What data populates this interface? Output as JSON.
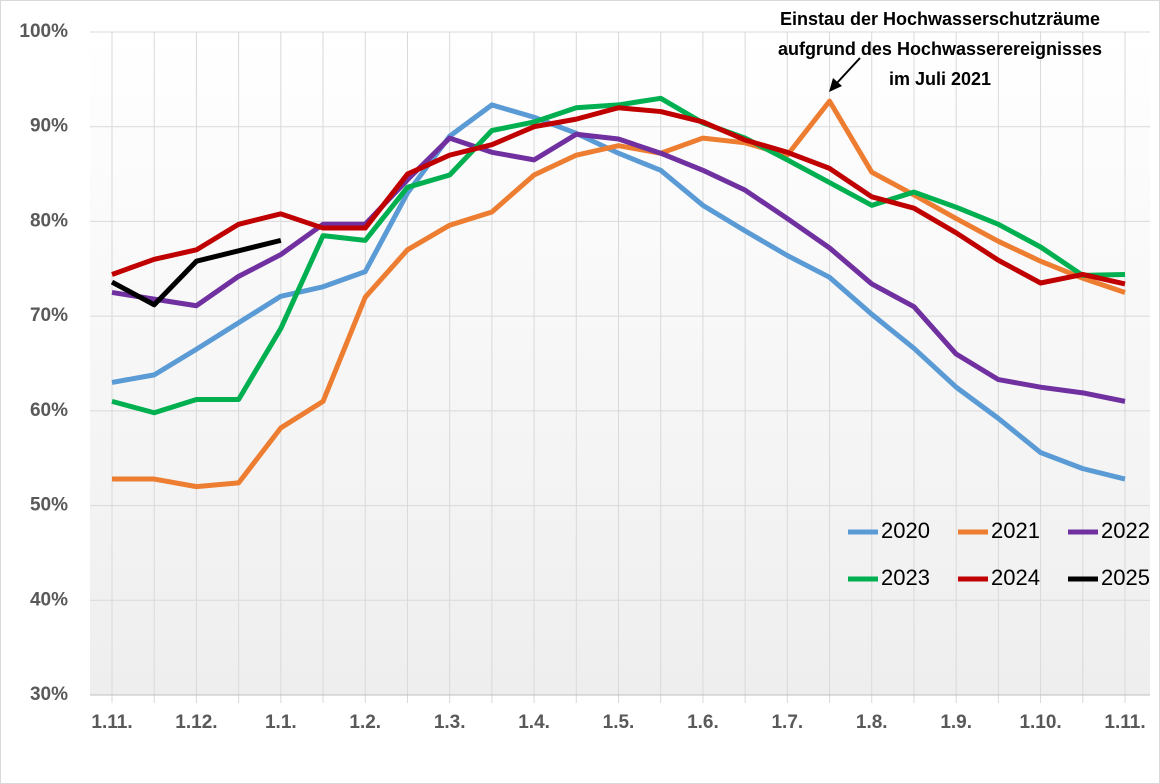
{
  "chart_data": {
    "type": "line",
    "annotation": [
      "Einstau der Hochwasserschutzräume",
      "aufgrund des Hochwasserereignisses",
      "im Juli 2021"
    ],
    "categories": [
      "1.11.",
      null,
      "1.12.",
      null,
      "1.1.",
      null,
      "1.2.",
      null,
      "1.3.",
      null,
      "1.4.",
      null,
      "1.5.",
      null,
      "1.6.",
      null,
      "1.7.",
      null,
      "1.8.",
      null,
      "1.9.",
      null,
      "1.10.",
      null,
      "1.11."
    ],
    "series": [
      {
        "name": "2020",
        "color": "#5b9bd5",
        "values": [
          63,
          63.8,
          66.5,
          69.3,
          72.1,
          73.1,
          74.7,
          83,
          89,
          92.3,
          91,
          89.3,
          87.2,
          85.4,
          81.7,
          79,
          76.4,
          74.1,
          70.2,
          66.6,
          62.5,
          59.2,
          55.6,
          53.9,
          52.8
        ]
      },
      {
        "name": "2021",
        "color": "#ed7d31",
        "values": [
          52.8,
          52.8,
          52.0,
          52.4,
          58.2,
          61,
          72,
          77,
          79.6,
          81,
          84.9,
          87,
          88,
          87.2,
          88.8,
          88.3,
          87,
          92.7,
          85.2,
          82.8,
          80.3,
          77.9,
          75.8,
          74,
          72.5
        ]
      },
      {
        "name": "2022",
        "color": "#7030a0",
        "values": [
          72.5,
          71.8,
          71.1,
          74.2,
          76.5,
          79.7,
          79.7,
          84.4,
          88.8,
          87.3,
          86.5,
          89.2,
          88.7,
          87.2,
          85.4,
          83.3,
          80.3,
          77.2,
          73.4,
          71,
          66,
          63.3,
          62.5,
          61.9,
          61
        ]
      },
      {
        "name": "2023",
        "color": "#00b050",
        "values": [
          61,
          59.8,
          61.2,
          61.2,
          68.7,
          78.5,
          78,
          83.6,
          84.9,
          89.6,
          90.5,
          92,
          92.3,
          93,
          90.4,
          88.8,
          86.5,
          84.1,
          81.7,
          83.1,
          81.5,
          79.7,
          77.3,
          74.3,
          74.4
        ]
      },
      {
        "name": "2024",
        "color": "#c00000",
        "values": [
          74.4,
          76,
          77,
          79.7,
          80.8,
          79.3,
          79.3,
          85,
          87,
          88.1,
          90,
          90.8,
          92,
          91.6,
          90.5,
          88.6,
          87.3,
          85.6,
          82.6,
          81.4,
          78.8,
          75.9,
          73.5,
          74.4,
          73.4
        ]
      },
      {
        "name": "2025",
        "color": "#000000",
        "values": [
          73.6,
          71.2,
          75.8,
          76.9,
          78,
          null,
          null,
          null,
          null,
          null,
          null,
          null,
          null,
          null,
          null,
          null,
          null,
          null,
          null,
          null,
          null,
          null,
          null,
          null,
          null
        ]
      }
    ],
    "ylim": [
      30,
      100
    ],
    "yticks": [
      {
        "value": 30,
        "label": "30%"
      },
      {
        "value": 40,
        "label": "40%"
      },
      {
        "value": 50,
        "label": "50%"
      },
      {
        "value": 60,
        "label": "60%"
      },
      {
        "value": 70,
        "label": "70%"
      },
      {
        "value": 80,
        "label": "80%"
      },
      {
        "value": 90,
        "label": "90%"
      },
      {
        "value": 100,
        "label": "100%"
      }
    ],
    "grid": true
  }
}
